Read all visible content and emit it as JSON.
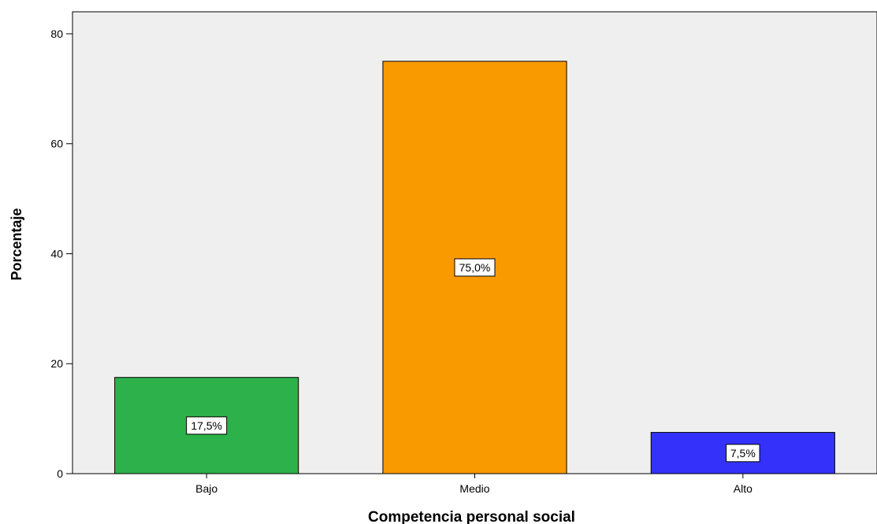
{
  "chart_data": {
    "type": "bar",
    "categories": [
      "Bajo",
      "Medio",
      "Alto"
    ],
    "values": [
      17.5,
      75.0,
      7.5
    ],
    "data_labels": [
      "17,5%",
      "75,0%",
      "7,5%"
    ],
    "colors": [
      "#2db14a",
      "#f99a00",
      "#3432fa"
    ],
    "plot_background": "#efefef",
    "xlabel": "Competencia personal social",
    "ylabel": "Porcentaje",
    "ylim": [
      0,
      84
    ],
    "yticks": [
      0,
      20,
      40,
      60,
      80
    ],
    "grid": false,
    "legend": "none"
  }
}
